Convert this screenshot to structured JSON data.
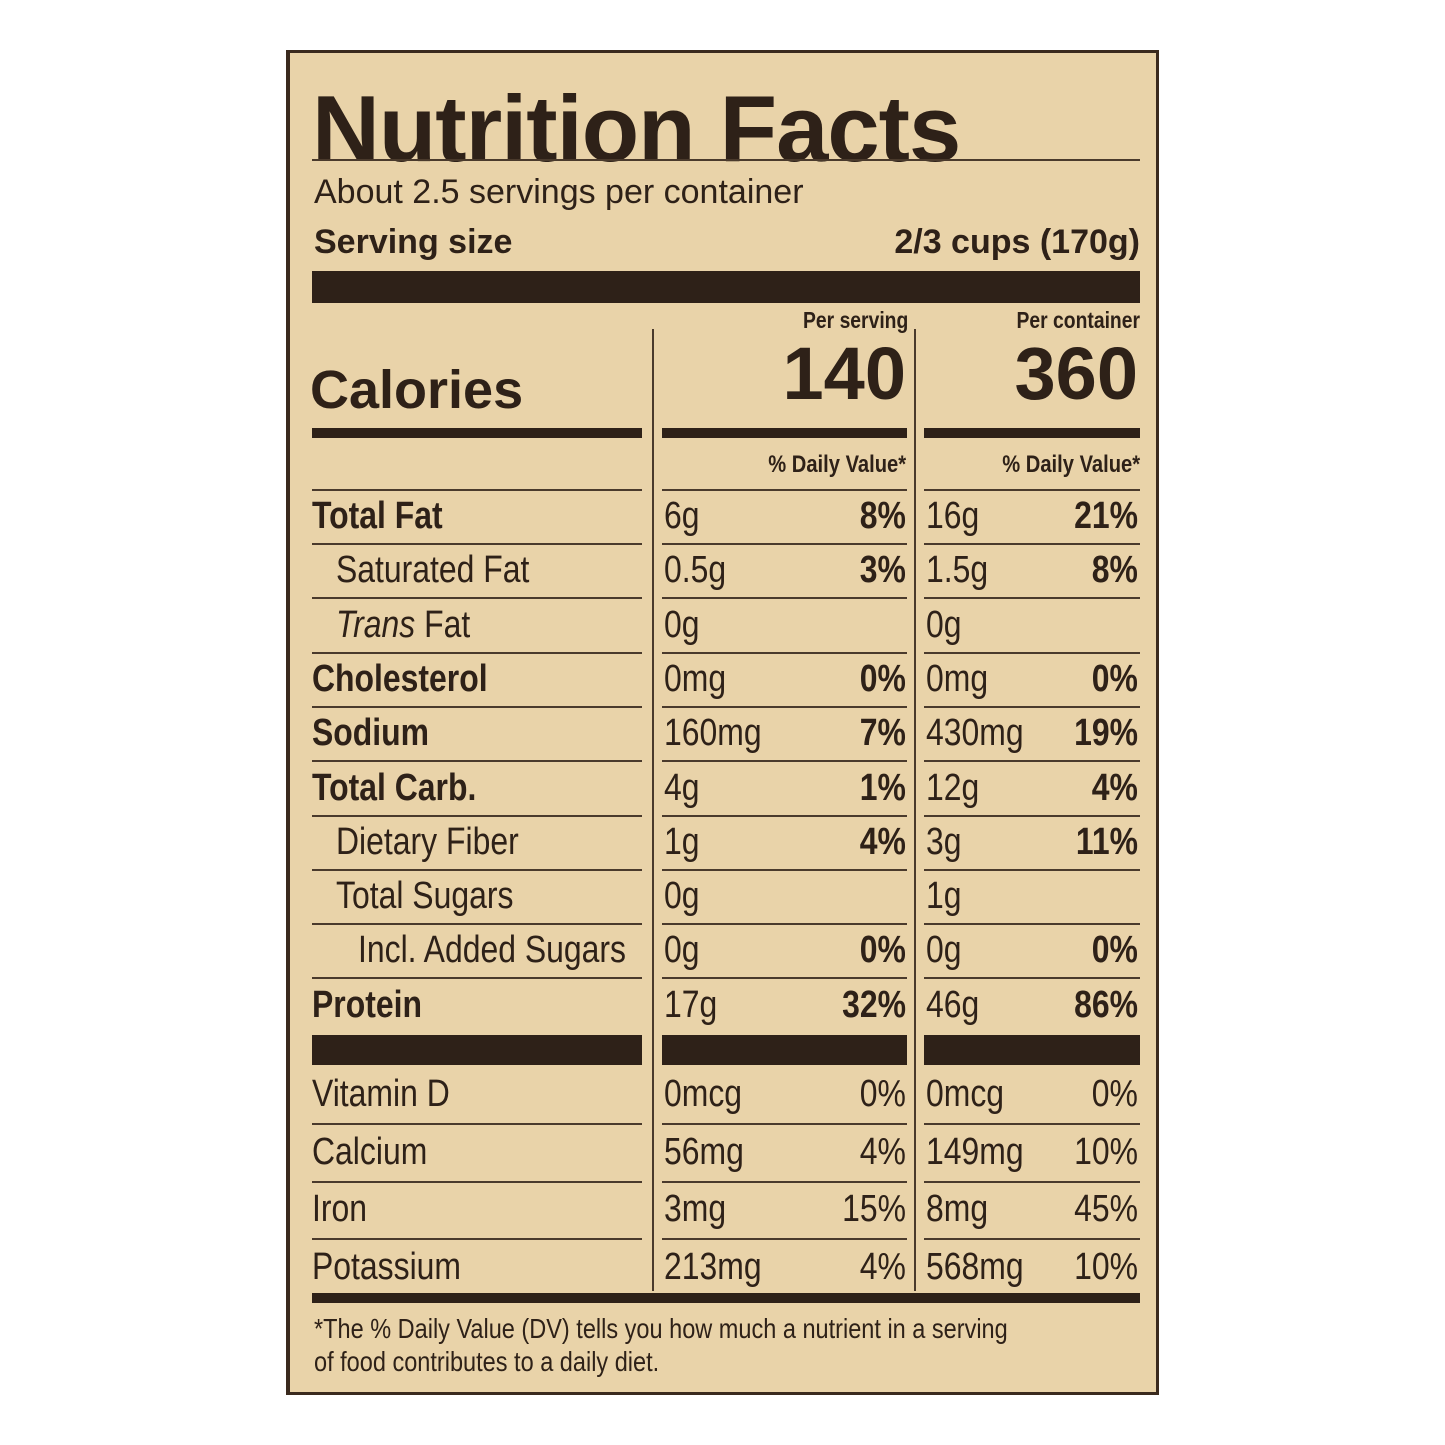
{
  "title": "Nutrition Facts",
  "servings_per_container": "About 2.5 servings per container",
  "serving_size_label": "Serving size",
  "serving_size_value": "2/3 cups (170g)",
  "columns": {
    "per_serving": "Per serving",
    "per_container": "Per container"
  },
  "calories": {
    "label": "Calories",
    "per_serving": "140",
    "per_container": "360"
  },
  "daily_value_header": "% Daily Value*",
  "nutrients": [
    {
      "label": "Total Fat",
      "bold": true,
      "indent": 0,
      "serving": "6g",
      "serving_dv": "8%",
      "container": "16g",
      "container_dv": "21%"
    },
    {
      "label": "Saturated Fat",
      "bold": false,
      "indent": 1,
      "serving": "0.5g",
      "serving_dv": "3%",
      "container": "1.5g",
      "container_dv": "8%"
    },
    {
      "label_italic": "Trans",
      "label": " Fat",
      "bold": false,
      "indent": 1,
      "serving": "0g",
      "serving_dv": "",
      "container": "0g",
      "container_dv": ""
    },
    {
      "label": "Cholesterol",
      "bold": true,
      "indent": 0,
      "serving": "0mg",
      "serving_dv": "0%",
      "container": "0mg",
      "container_dv": "0%"
    },
    {
      "label": "Sodium",
      "bold": true,
      "indent": 0,
      "serving": "160mg",
      "serving_dv": "7%",
      "container": "430mg",
      "container_dv": "19%"
    },
    {
      "label": "Total Carb.",
      "bold": true,
      "indent": 0,
      "serving": "4g",
      "serving_dv": "1%",
      "container": "12g",
      "container_dv": "4%"
    },
    {
      "label": "Dietary Fiber",
      "bold": false,
      "indent": 1,
      "serving": "1g",
      "serving_dv": "4%",
      "container": "3g",
      "container_dv": "11%"
    },
    {
      "label": "Total Sugars",
      "bold": false,
      "indent": 1,
      "serving": "0g",
      "serving_dv": "",
      "container": "1g",
      "container_dv": ""
    },
    {
      "label": "Incl. Added Sugars",
      "bold": false,
      "indent": 2,
      "serving": "0g",
      "serving_dv": "0%",
      "container": "0g",
      "container_dv": "0%"
    },
    {
      "label": "Protein",
      "bold": true,
      "indent": 0,
      "serving": "17g",
      "serving_dv": "32%",
      "container": "46g",
      "container_dv": "86%"
    }
  ],
  "vitamins": [
    {
      "label": "Vitamin D",
      "serving": "0mcg",
      "serving_dv": "0%",
      "container": "0mcg",
      "container_dv": "0%"
    },
    {
      "label": "Calcium",
      "serving": "56mg",
      "serving_dv": "4%",
      "container": "149mg",
      "container_dv": "10%"
    },
    {
      "label": "Iron",
      "serving": "3mg",
      "serving_dv": "15%",
      "container": "8mg",
      "container_dv": "45%"
    },
    {
      "label": "Potassium",
      "serving": "213mg",
      "serving_dv": "4%",
      "container": "568mg",
      "container_dv": "10%"
    }
  ],
  "footnote": {
    "line1": "*The % Daily Value (DV) tells you how much a nutrient in a serving",
    "line2": "of food contributes to a daily diet."
  },
  "colors": {
    "label_background": "#e9d3a9",
    "ink": "#2e2118"
  }
}
